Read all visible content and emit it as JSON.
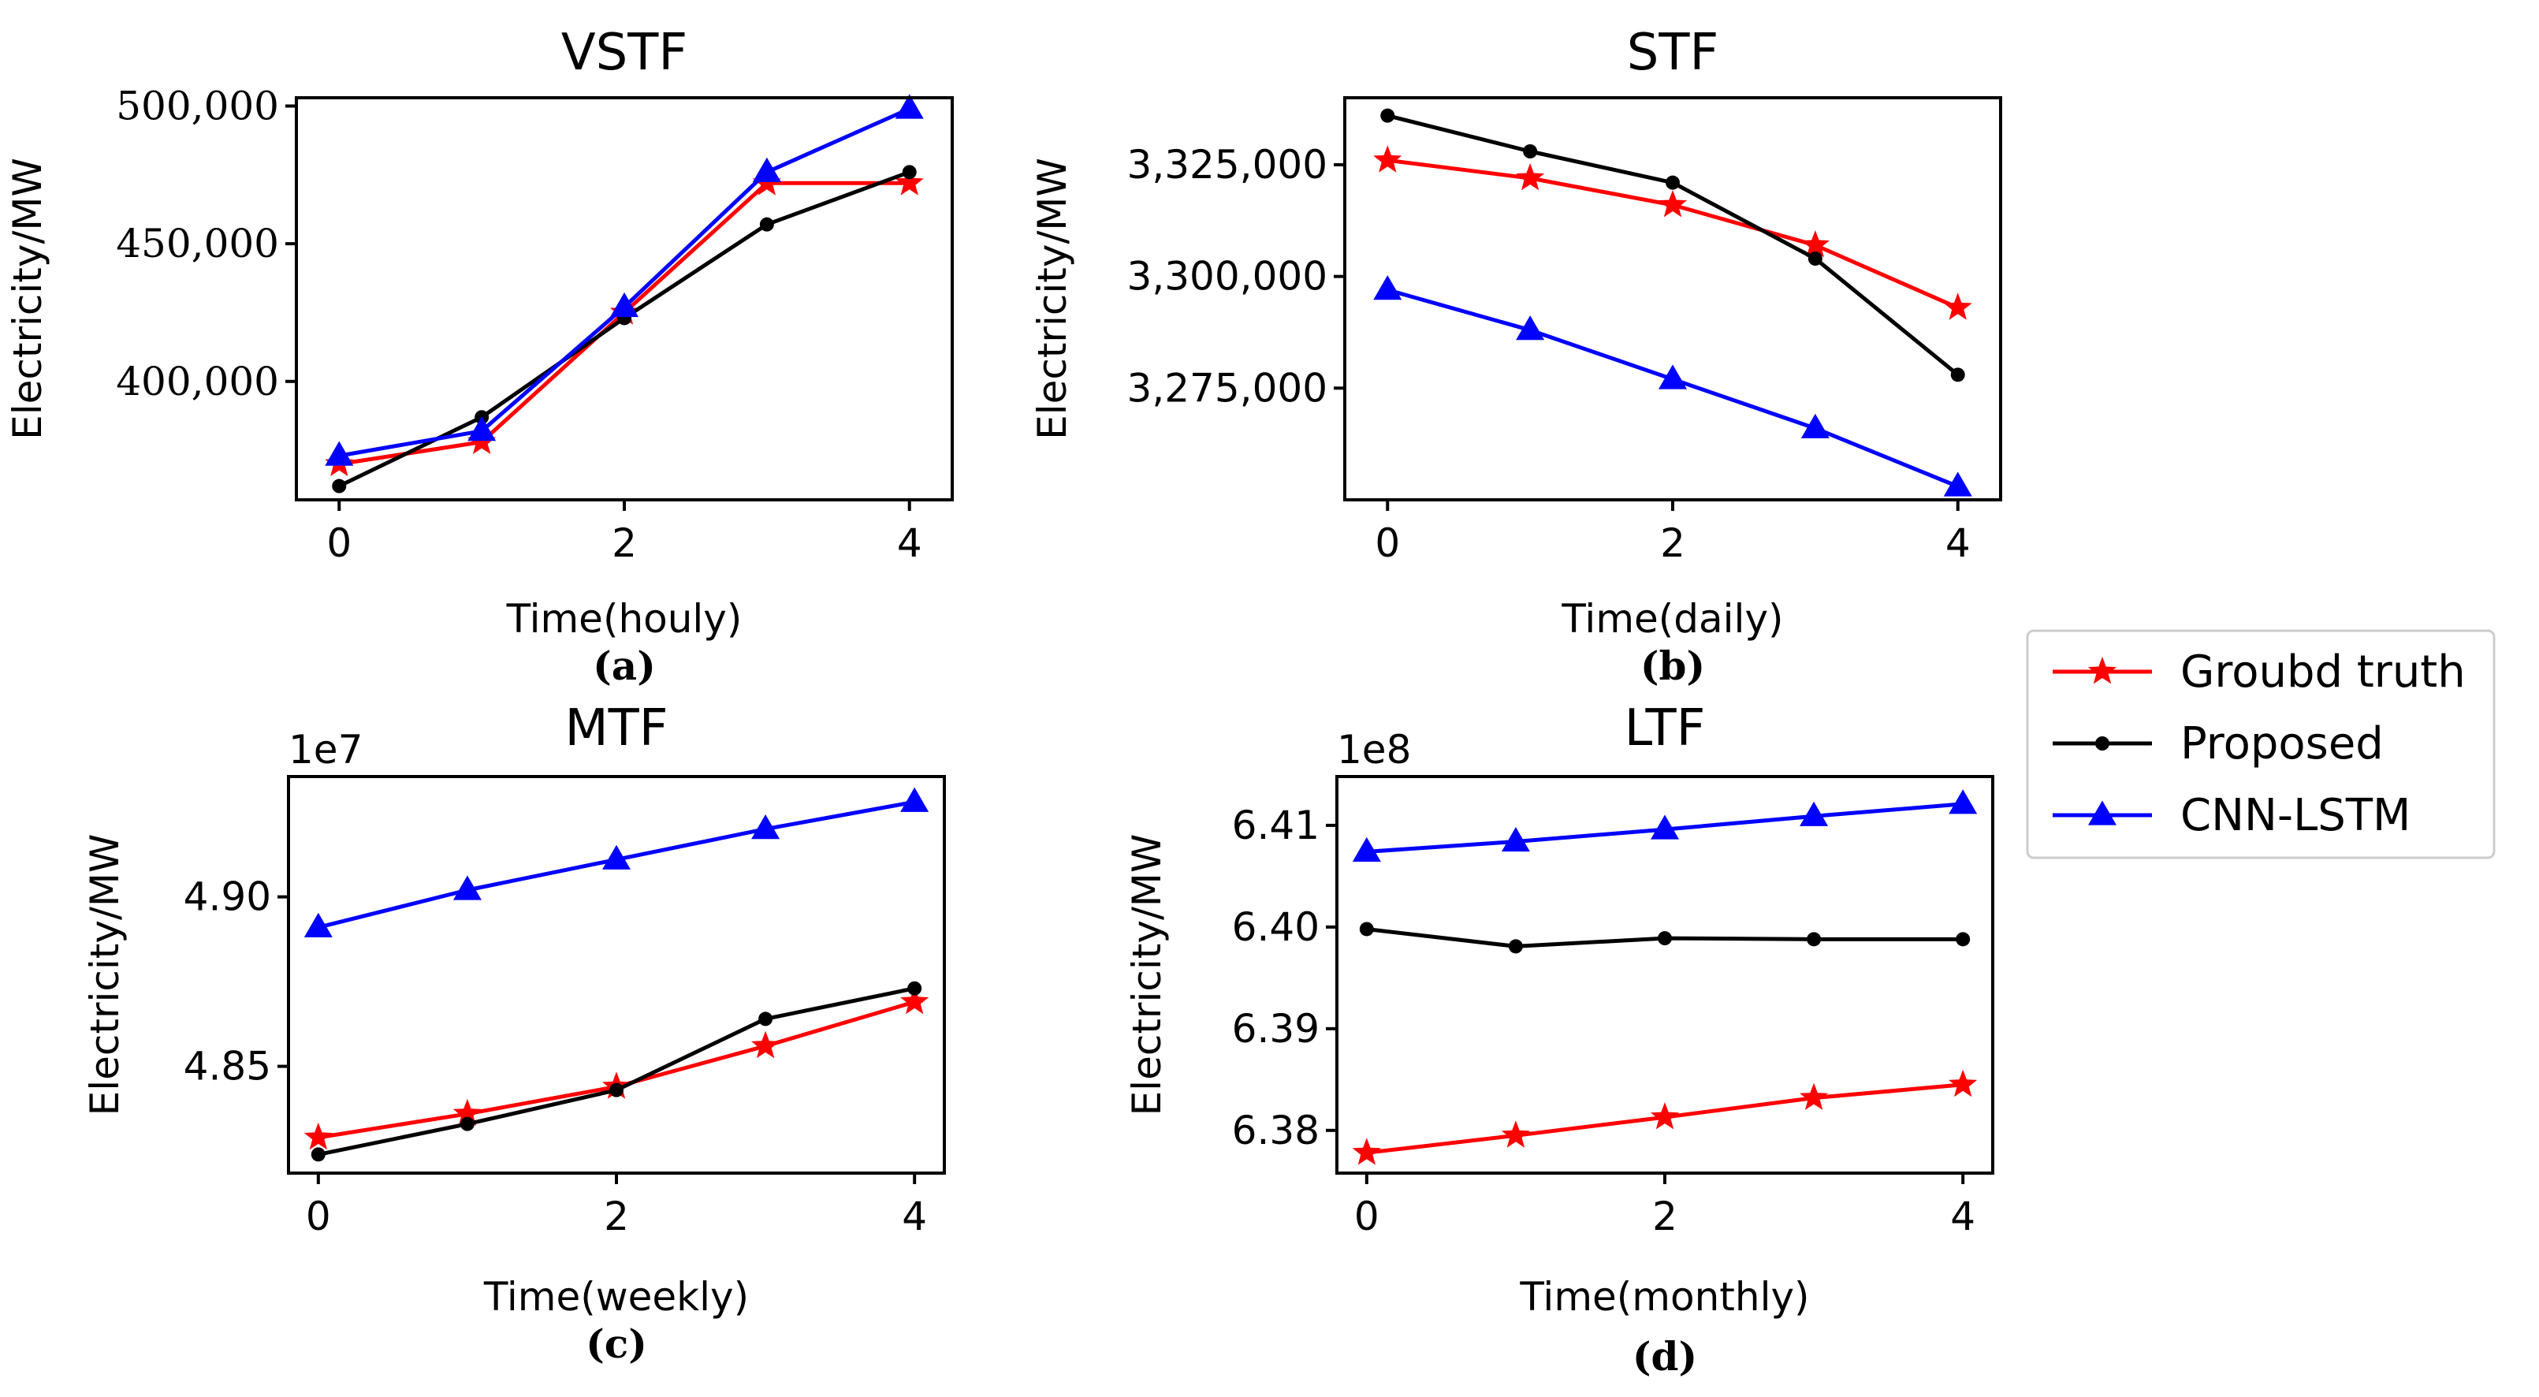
{
  "legend": {
    "entries": [
      {
        "key": "truth",
        "label": "Groubd truth",
        "color": "#ff0000",
        "marker": "star"
      },
      {
        "key": "proposed",
        "label": "Proposed",
        "color": "#000000",
        "marker": "dot"
      },
      {
        "key": "cnn",
        "label": "CNN-LSTM",
        "color": "#0000ff",
        "marker": "triangle"
      }
    ]
  },
  "chart_data": [
    {
      "type": "line",
      "title": "VSTF",
      "caption": "(a)",
      "xlabel": "Time(houly)",
      "ylabel": "Electricity/MW",
      "x": [
        0,
        1,
        2,
        3,
        4
      ],
      "xticks": [
        0,
        2,
        4
      ],
      "xtick_labels": [
        "0",
        "2",
        "4"
      ],
      "xlim": [
        -0.3,
        4.3
      ],
      "ylim": [
        357000,
        503000
      ],
      "yticks": [
        400000,
        450000,
        500000
      ],
      "ytick_labels": [
        "400,000",
        "450,000",
        "500,000"
      ],
      "offset_text": "",
      "series": [
        {
          "key": "truth",
          "name": "Groubd truth",
          "values": [
            370000,
            378000,
            425000,
            472000,
            472000
          ]
        },
        {
          "key": "proposed",
          "name": "Proposed",
          "values": [
            362000,
            387000,
            423000,
            457000,
            476000
          ]
        },
        {
          "key": "cnn",
          "name": "CNN-LSTM",
          "values": [
            373000,
            382000,
            427000,
            476000,
            499000
          ]
        }
      ]
    },
    {
      "type": "line",
      "title": "STF",
      "caption": "(b)",
      "xlabel": "Time(daily)",
      "ylabel": "Electricity/MW",
      "x": [
        0,
        1,
        2,
        3,
        4
      ],
      "xticks": [
        0,
        2,
        4
      ],
      "xtick_labels": [
        "0",
        "2",
        "4"
      ],
      "xlim": [
        -0.3,
        4.3
      ],
      "ylim": [
        3250000,
        3340000
      ],
      "yticks": [
        3275000,
        3300000,
        3325000
      ],
      "ytick_labels": [
        "3,275,000",
        "3,300,000",
        "3,325,000"
      ],
      "offset_text": "",
      "series": [
        {
          "key": "truth",
          "name": "Groubd truth",
          "values": [
            3326000,
            3322000,
            3316000,
            3307000,
            3293000
          ]
        },
        {
          "key": "proposed",
          "name": "Proposed",
          "values": [
            3336000,
            3328000,
            3321000,
            3304000,
            3278000
          ]
        },
        {
          "key": "cnn",
          "name": "CNN-LSTM",
          "values": [
            3297000,
            3288000,
            3277000,
            3266000,
            3253000
          ]
        }
      ]
    },
    {
      "type": "line",
      "title": "MTF",
      "caption": "(c)",
      "xlabel": "Time(weekly)",
      "ylabel": "Electricity/MW",
      "x": [
        0,
        1,
        2,
        3,
        4
      ],
      "xticks": [
        0,
        2,
        4
      ],
      "xtick_labels": [
        "0",
        "2",
        "4"
      ],
      "xlim": [
        -0.2,
        4.2
      ],
      "ylim": [
        4.8185,
        4.9355
      ],
      "yticks": [
        4.85,
        4.9
      ],
      "ytick_labels": [
        "4.85",
        "4.90"
      ],
      "offset_text": "1e7",
      "series": [
        {
          "key": "truth",
          "name": "Groubd truth",
          "values": [
            4.829,
            4.836,
            4.844,
            4.856,
            4.869
          ]
        },
        {
          "key": "proposed",
          "name": "Proposed",
          "values": [
            4.824,
            4.833,
            4.843,
            4.864,
            4.873
          ]
        },
        {
          "key": "cnn",
          "name": "CNN-LSTM",
          "values": [
            4.891,
            4.902,
            4.911,
            4.92,
            4.928
          ]
        }
      ]
    },
    {
      "type": "line",
      "title": "LTF",
      "caption": "(d)",
      "xlabel": "Time(monthly)",
      "ylabel": "Electricity/MW",
      "x": [
        0,
        1,
        2,
        3,
        4
      ],
      "xticks": [
        0,
        2,
        4
      ],
      "xtick_labels": [
        "0",
        "2",
        "4"
      ],
      "xlim": [
        -0.2,
        4.2
      ],
      "ylim": [
        6.3758,
        6.4148
      ],
      "yticks": [
        6.38,
        6.39,
        6.4,
        6.41
      ],
      "ytick_labels": [
        "6.38",
        "6.39",
        "6.40",
        "6.41"
      ],
      "offset_text": "1e8",
      "series": [
        {
          "key": "truth",
          "name": "Groubd truth",
          "values": [
            6.3778,
            6.3795,
            6.3813,
            6.3832,
            6.3845
          ]
        },
        {
          "key": "proposed",
          "name": "Proposed",
          "values": [
            6.3998,
            6.3981,
            6.3989,
            6.3988,
            6.3988
          ]
        },
        {
          "key": "cnn",
          "name": "CNN-LSTM",
          "values": [
            6.4074,
            6.4084,
            6.4096,
            6.4109,
            6.4121
          ]
        }
      ]
    }
  ]
}
